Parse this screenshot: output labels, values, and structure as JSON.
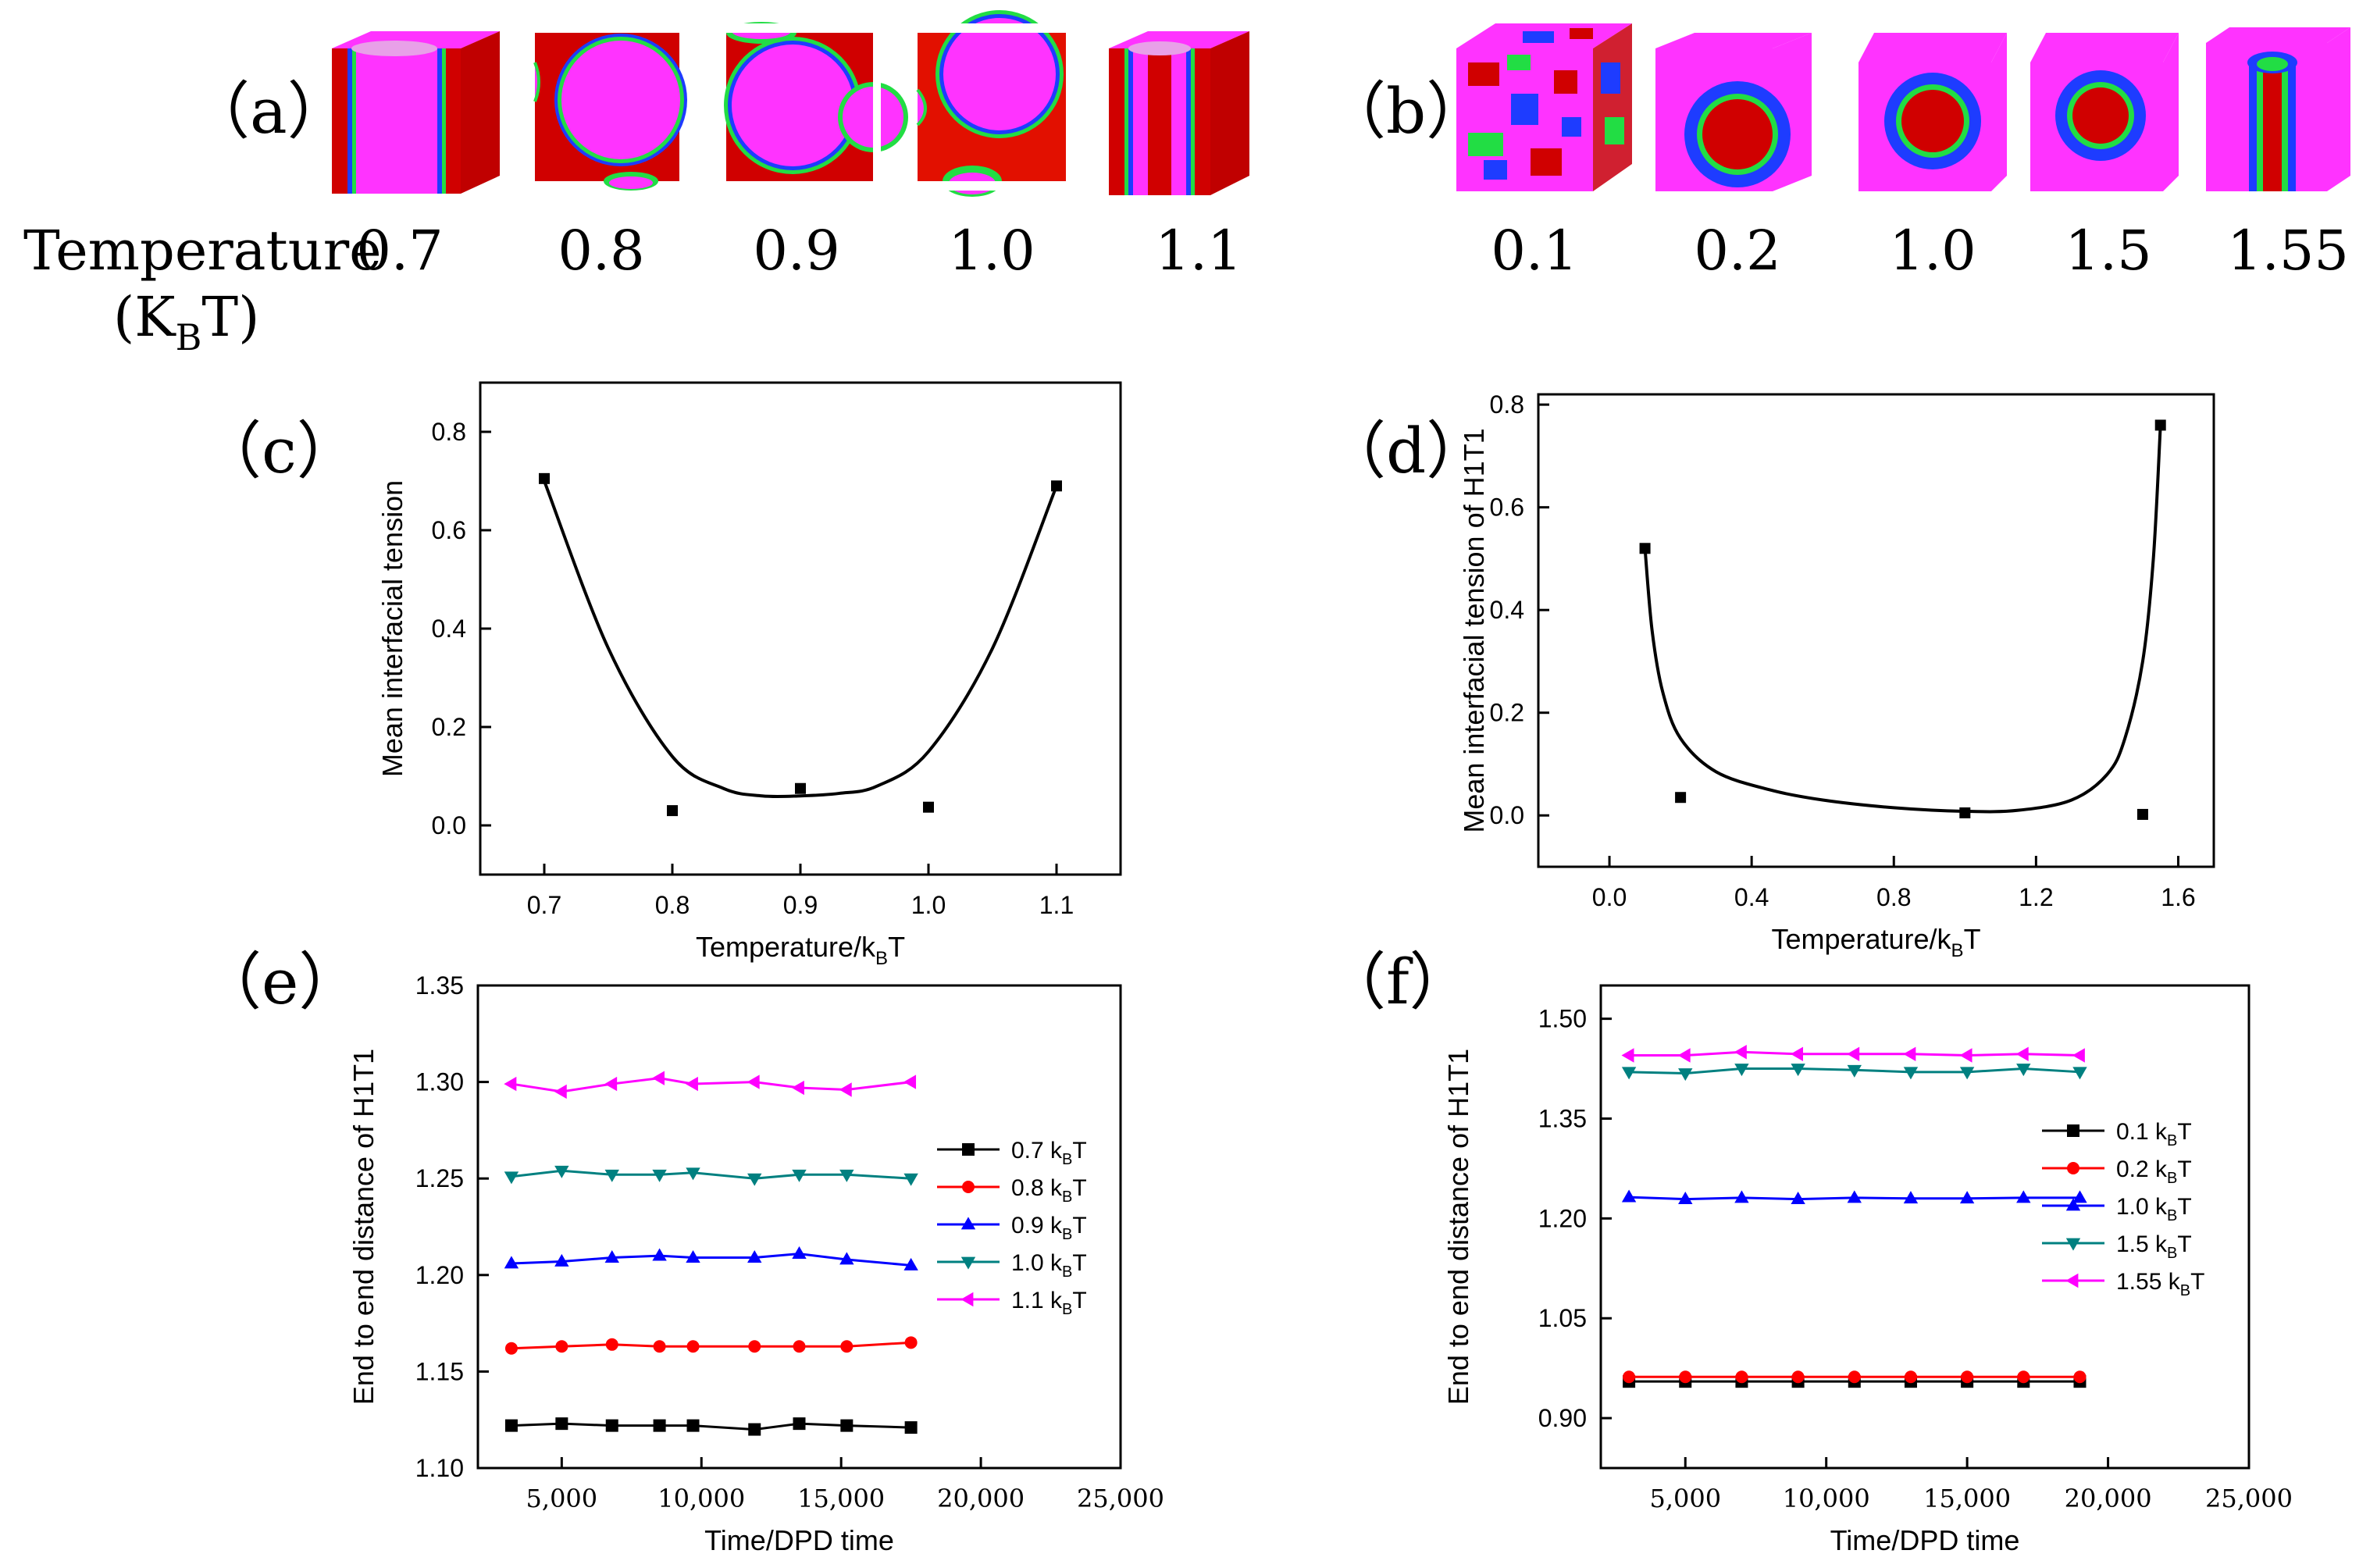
{
  "panel_a": {
    "label": "（a）",
    "row_label": "Temperature",
    "unit_label": "(K",
    "unit_sub": "B",
    "unit_end": "T)",
    "temps": [
      "0.7",
      "0.8",
      "0.9",
      "1.0",
      "1.1"
    ]
  },
  "panel_b": {
    "label": "（b）",
    "temps": [
      "0.1",
      "0.2",
      "1.0",
      "1.5",
      "1.55"
    ]
  },
  "colors": {
    "red": "#d00000",
    "magenta": "#ff33ff",
    "blue": "#1e3cff",
    "green": "#22dd44",
    "black": "#000000"
  },
  "chart_data": [
    {
      "id": "c",
      "label": "（c）",
      "type": "scatter",
      "xlabel": "Temperature/k",
      "xlabel_sub": "B",
      "xlabel_end": "T",
      "ylabel": "Mean interfacial tension",
      "xlim": [
        0.65,
        1.15
      ],
      "ylim": [
        -0.1,
        0.9
      ],
      "xticks": [
        "0.7",
        "0.8",
        "0.9",
        "1.0",
        "1.1"
      ],
      "xtick_values": [
        0.7,
        0.8,
        0.9,
        1.0,
        1.1
      ],
      "yticks": [
        "0.0",
        "0.2",
        "0.4",
        "0.6",
        "0.8"
      ],
      "ytick_values": [
        0.0,
        0.2,
        0.4,
        0.6,
        0.8
      ],
      "points": [
        [
          0.7,
          0.705
        ],
        [
          0.8,
          0.03
        ],
        [
          0.9,
          0.075
        ],
        [
          1.0,
          0.037
        ],
        [
          1.1,
          0.69
        ]
      ],
      "fit": [
        [
          0.7,
          0.7
        ],
        [
          0.75,
          0.36
        ],
        [
          0.8,
          0.14
        ],
        [
          0.84,
          0.075
        ],
        [
          0.87,
          0.06
        ],
        [
          0.9,
          0.06
        ],
        [
          0.93,
          0.065
        ],
        [
          0.96,
          0.08
        ],
        [
          1.0,
          0.15
        ],
        [
          1.05,
          0.36
        ],
        [
          1.1,
          0.69
        ]
      ]
    },
    {
      "id": "d",
      "label": "（d）",
      "type": "scatter",
      "xlabel": "Temperature/k",
      "xlabel_sub": "B",
      "xlabel_end": "T",
      "ylabel": "Mean interfacial tension of H1T1",
      "xlim": [
        -0.2,
        1.7
      ],
      "ylim": [
        -0.1,
        0.82
      ],
      "xticks": [
        "0.0",
        "0.4",
        "0.8",
        "1.2",
        "1.6"
      ],
      "xtick_values": [
        0.0,
        0.4,
        0.8,
        1.2,
        1.6
      ],
      "yticks": [
        "0.0",
        "0.2",
        "0.4",
        "0.6",
        "0.8"
      ],
      "ytick_values": [
        0.0,
        0.2,
        0.4,
        0.6,
        0.8
      ],
      "points": [
        [
          0.1,
          0.52
        ],
        [
          0.2,
          0.035
        ],
        [
          1.0,
          0.005
        ],
        [
          1.5,
          0.002
        ],
        [
          1.55,
          0.76
        ]
      ],
      "fit": [
        [
          0.1,
          0.52
        ],
        [
          0.12,
          0.36
        ],
        [
          0.15,
          0.24
        ],
        [
          0.2,
          0.15
        ],
        [
          0.3,
          0.085
        ],
        [
          0.45,
          0.05
        ],
        [
          0.6,
          0.03
        ],
        [
          0.8,
          0.015
        ],
        [
          1.0,
          0.008
        ],
        [
          1.15,
          0.01
        ],
        [
          1.3,
          0.03
        ],
        [
          1.4,
          0.08
        ],
        [
          1.45,
          0.15
        ],
        [
          1.5,
          0.3
        ],
        [
          1.53,
          0.5
        ],
        [
          1.55,
          0.76
        ]
      ]
    },
    {
      "id": "e",
      "label": "（e）",
      "type": "line",
      "xlabel": "Time/DPD time",
      "ylabel": "End to end distance of H1T1",
      "xlim": [
        2000,
        25000
      ],
      "ylim": [
        1.1,
        1.35
      ],
      "xticks": [
        "5,000",
        "10,000",
        "15,000",
        "20,000",
        "25,000"
      ],
      "xtick_values": [
        5000,
        10000,
        15000,
        20000,
        25000
      ],
      "yticks": [
        "1.10",
        "1.15",
        "1.20",
        "1.25",
        "1.30",
        "1.35"
      ],
      "ytick_values": [
        1.1,
        1.15,
        1.2,
        1.25,
        1.3,
        1.35
      ],
      "legend_position": "right",
      "x": [
        3200,
        5000,
        6800,
        8500,
        9700,
        11900,
        13500,
        15200,
        17500
      ],
      "series": [
        {
          "name": "0.7 k",
          "sub": "B",
          "end": "T",
          "color": "#000000",
          "marker": "square",
          "values": [
            1.122,
            1.123,
            1.122,
            1.122,
            1.122,
            1.12,
            1.123,
            1.122,
            1.121
          ]
        },
        {
          "name": "0.8 k",
          "sub": "B",
          "end": "T",
          "color": "#ff0000",
          "marker": "circle",
          "values": [
            1.162,
            1.163,
            1.164,
            1.163,
            1.163,
            1.163,
            1.163,
            1.163,
            1.165
          ]
        },
        {
          "name": "0.9 k",
          "sub": "B",
          "end": "T",
          "color": "#0000ff",
          "marker": "triangle-up",
          "values": [
            1.206,
            1.207,
            1.209,
            1.21,
            1.209,
            1.209,
            1.211,
            1.208,
            1.205
          ]
        },
        {
          "name": "1.0 k",
          "sub": "B",
          "end": "T",
          "color": "#008080",
          "marker": "triangle-down",
          "values": [
            1.251,
            1.254,
            1.252,
            1.252,
            1.253,
            1.25,
            1.252,
            1.252,
            1.25
          ]
        },
        {
          "name": "1.1 k",
          "sub": "B",
          "end": "T",
          "color": "#ff00ff",
          "marker": "triangle-left",
          "values": [
            1.299,
            1.295,
            1.299,
            1.302,
            1.299,
            1.3,
            1.297,
            1.296,
            1.3
          ]
        }
      ]
    },
    {
      "id": "f",
      "label": "（f）",
      "type": "line",
      "xlabel": "Time/DPD time",
      "ylabel": "End to end distance of H1T1",
      "xlim": [
        2000,
        25000
      ],
      "ylim": [
        0.825,
        1.55
      ],
      "xticks": [
        "5,000",
        "10,000",
        "15,000",
        "20,000",
        "25,000"
      ],
      "xtick_values": [
        5000,
        10000,
        15000,
        20000,
        25000
      ],
      "yticks": [
        "0.90",
        "1.05",
        "1.20",
        "1.35",
        "1.50"
      ],
      "ytick_values": [
        0.9,
        1.05,
        1.2,
        1.35,
        1.5
      ],
      "legend_position": "right",
      "x": [
        3000,
        5000,
        7000,
        9000,
        11000,
        13000,
        15000,
        17000,
        19000
      ],
      "series": [
        {
          "name": "0.1 k",
          "sub": "B",
          "end": "T",
          "color": "#000000",
          "marker": "square",
          "values": [
            0.955,
            0.955,
            0.955,
            0.955,
            0.955,
            0.955,
            0.955,
            0.955,
            0.955
          ]
        },
        {
          "name": "0.2 k",
          "sub": "B",
          "end": "T",
          "color": "#ff0000",
          "marker": "circle",
          "values": [
            0.962,
            0.962,
            0.962,
            0.962,
            0.962,
            0.962,
            0.962,
            0.962,
            0.962
          ]
        },
        {
          "name": "1.0 k",
          "sub": "B",
          "end": "T",
          "color": "#0000ff",
          "marker": "triangle-up",
          "values": [
            1.232,
            1.229,
            1.231,
            1.229,
            1.231,
            1.23,
            1.23,
            1.231,
            1.231
          ]
        },
        {
          "name": "1.5 k",
          "sub": "B",
          "end": "T",
          "color": "#008080",
          "marker": "triangle-down",
          "values": [
            1.42,
            1.418,
            1.425,
            1.425,
            1.423,
            1.42,
            1.42,
            1.425,
            1.42
          ]
        },
        {
          "name": "1.55 k",
          "sub": "B",
          "end": "T",
          "color": "#ff00ff",
          "marker": "triangle-left",
          "values": [
            1.445,
            1.445,
            1.45,
            1.447,
            1.447,
            1.447,
            1.445,
            1.447,
            1.445
          ]
        }
      ]
    }
  ]
}
